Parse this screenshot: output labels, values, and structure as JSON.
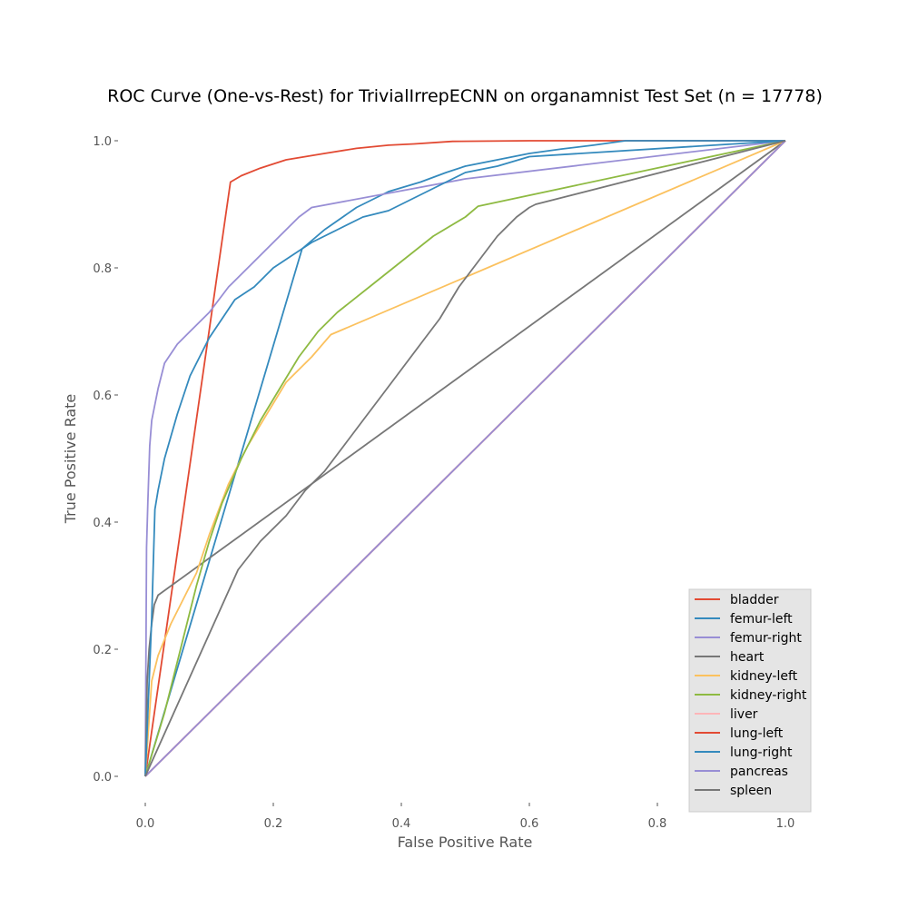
{
  "chart_data": {
    "type": "line",
    "title": "ROC Curve (One-vs-Rest) for TrivialIrrepECNN on organamnist Test Set (n = 17778)",
    "xlabel": "False Positive Rate",
    "ylabel": "True Positive Rate",
    "xlim": [
      0,
      1
    ],
    "ylim": [
      0,
      1
    ],
    "xticks": [
      0.0,
      0.2,
      0.4,
      0.6,
      0.8,
      1.0
    ],
    "yticks": [
      0.0,
      0.2,
      0.4,
      0.6,
      0.8,
      1.0
    ],
    "xtick_labels": [
      "0.0",
      "0.2",
      "0.4",
      "0.6",
      "0.8",
      "1.0"
    ],
    "ytick_labels": [
      "0.0",
      "0.2",
      "0.4",
      "0.6",
      "0.8",
      "1.0"
    ],
    "grid": false,
    "legend_position": "lower-right",
    "series": [
      {
        "name": "bladder",
        "color": "#E24A33",
        "x": [
          0,
          0.133,
          0.15,
          0.18,
          0.22,
          0.28,
          0.33,
          0.38,
          0.42,
          0.48,
          0.6,
          0.76,
          1.0
        ],
        "y": [
          0,
          0.935,
          0.945,
          0.957,
          0.97,
          0.98,
          0.988,
          0.993,
          0.995,
          0.999,
          1.0,
          1.0,
          1.0
        ]
      },
      {
        "name": "femur-left",
        "color": "#348ABD",
        "x": [
          0,
          0.245,
          0.28,
          0.33,
          0.38,
          0.43,
          0.47,
          0.5,
          0.55,
          0.6,
          0.65,
          0.7,
          0.75,
          1.0
        ],
        "y": [
          0,
          0.83,
          0.86,
          0.895,
          0.92,
          0.935,
          0.95,
          0.96,
          0.97,
          0.98,
          0.987,
          0.993,
          1.0,
          1.0
        ]
      },
      {
        "name": "femur-right",
        "color": "#988ED5",
        "x": [
          0,
          0.002,
          0.004,
          0.007,
          0.01,
          0.02,
          0.03,
          0.05,
          0.07,
          0.1,
          0.13,
          0.17,
          0.2,
          0.24,
          0.26,
          0.5,
          1.0
        ],
        "y": [
          0,
          0.36,
          0.43,
          0.52,
          0.56,
          0.61,
          0.65,
          0.68,
          0.7,
          0.73,
          0.77,
          0.81,
          0.84,
          0.88,
          0.895,
          0.94,
          1.0
        ]
      },
      {
        "name": "heart",
        "color": "#777777",
        "x": [
          0,
          0.003,
          0.006,
          0.01,
          0.014,
          0.02,
          1.0
        ],
        "y": [
          0,
          0.15,
          0.2,
          0.24,
          0.27,
          0.285,
          1.0
        ]
      },
      {
        "name": "kidney-left",
        "color": "#FBC15E",
        "x": [
          0,
          0.01,
          0.02,
          0.04,
          0.06,
          0.08,
          0.1,
          0.13,
          0.16,
          0.19,
          0.22,
          0.26,
          0.29,
          1.0
        ],
        "y": [
          0,
          0.15,
          0.19,
          0.24,
          0.28,
          0.32,
          0.38,
          0.46,
          0.52,
          0.57,
          0.62,
          0.66,
          0.695,
          1.0
        ]
      },
      {
        "name": "kidney-right",
        "color": "#8EBA42",
        "x": [
          0,
          0.03,
          0.06,
          0.08,
          0.1,
          0.12,
          0.15,
          0.18,
          0.21,
          0.24,
          0.27,
          0.3,
          0.35,
          0.4,
          0.45,
          0.5,
          0.52,
          1.0
        ],
        "y": [
          0,
          0.1,
          0.22,
          0.3,
          0.37,
          0.43,
          0.5,
          0.56,
          0.61,
          0.66,
          0.7,
          0.73,
          0.77,
          0.81,
          0.85,
          0.88,
          0.897,
          1.0
        ]
      },
      {
        "name": "liver",
        "color": "#FFB5B8",
        "x": [
          0,
          1.0
        ],
        "y": [
          0,
          1.0
        ]
      },
      {
        "name": "lung-left",
        "color": "#E24A33",
        "x": [
          0,
          1.0
        ],
        "y": [
          0,
          1.0
        ]
      },
      {
        "name": "lung-right",
        "color": "#348ABD",
        "x": [
          0,
          0.01,
          0.015,
          0.02,
          0.03,
          0.05,
          0.07,
          0.09,
          0.1,
          0.12,
          0.14,
          0.17,
          0.2,
          0.23,
          0.26,
          0.3,
          0.34,
          0.38,
          0.42,
          0.46,
          0.5,
          0.55,
          0.6,
          1.0
        ],
        "y": [
          0,
          0.25,
          0.42,
          0.45,
          0.5,
          0.57,
          0.63,
          0.67,
          0.69,
          0.72,
          0.75,
          0.77,
          0.8,
          0.82,
          0.84,
          0.86,
          0.88,
          0.89,
          0.91,
          0.93,
          0.95,
          0.96,
          0.975,
          1.0
        ]
      },
      {
        "name": "pancreas",
        "color": "#988ED5",
        "x": [
          0,
          1.0
        ],
        "y": [
          0,
          1.0
        ]
      },
      {
        "name": "spleen",
        "color": "#777777",
        "x": [
          0,
          0.145,
          0.18,
          0.22,
          0.25,
          0.28,
          0.31,
          0.34,
          0.37,
          0.4,
          0.43,
          0.46,
          0.49,
          0.52,
          0.55,
          0.58,
          0.6,
          0.61,
          1.0
        ],
        "y": [
          0,
          0.325,
          0.37,
          0.41,
          0.45,
          0.48,
          0.52,
          0.56,
          0.6,
          0.64,
          0.68,
          0.72,
          0.77,
          0.81,
          0.85,
          0.88,
          0.895,
          0.9,
          1.0
        ]
      }
    ]
  }
}
